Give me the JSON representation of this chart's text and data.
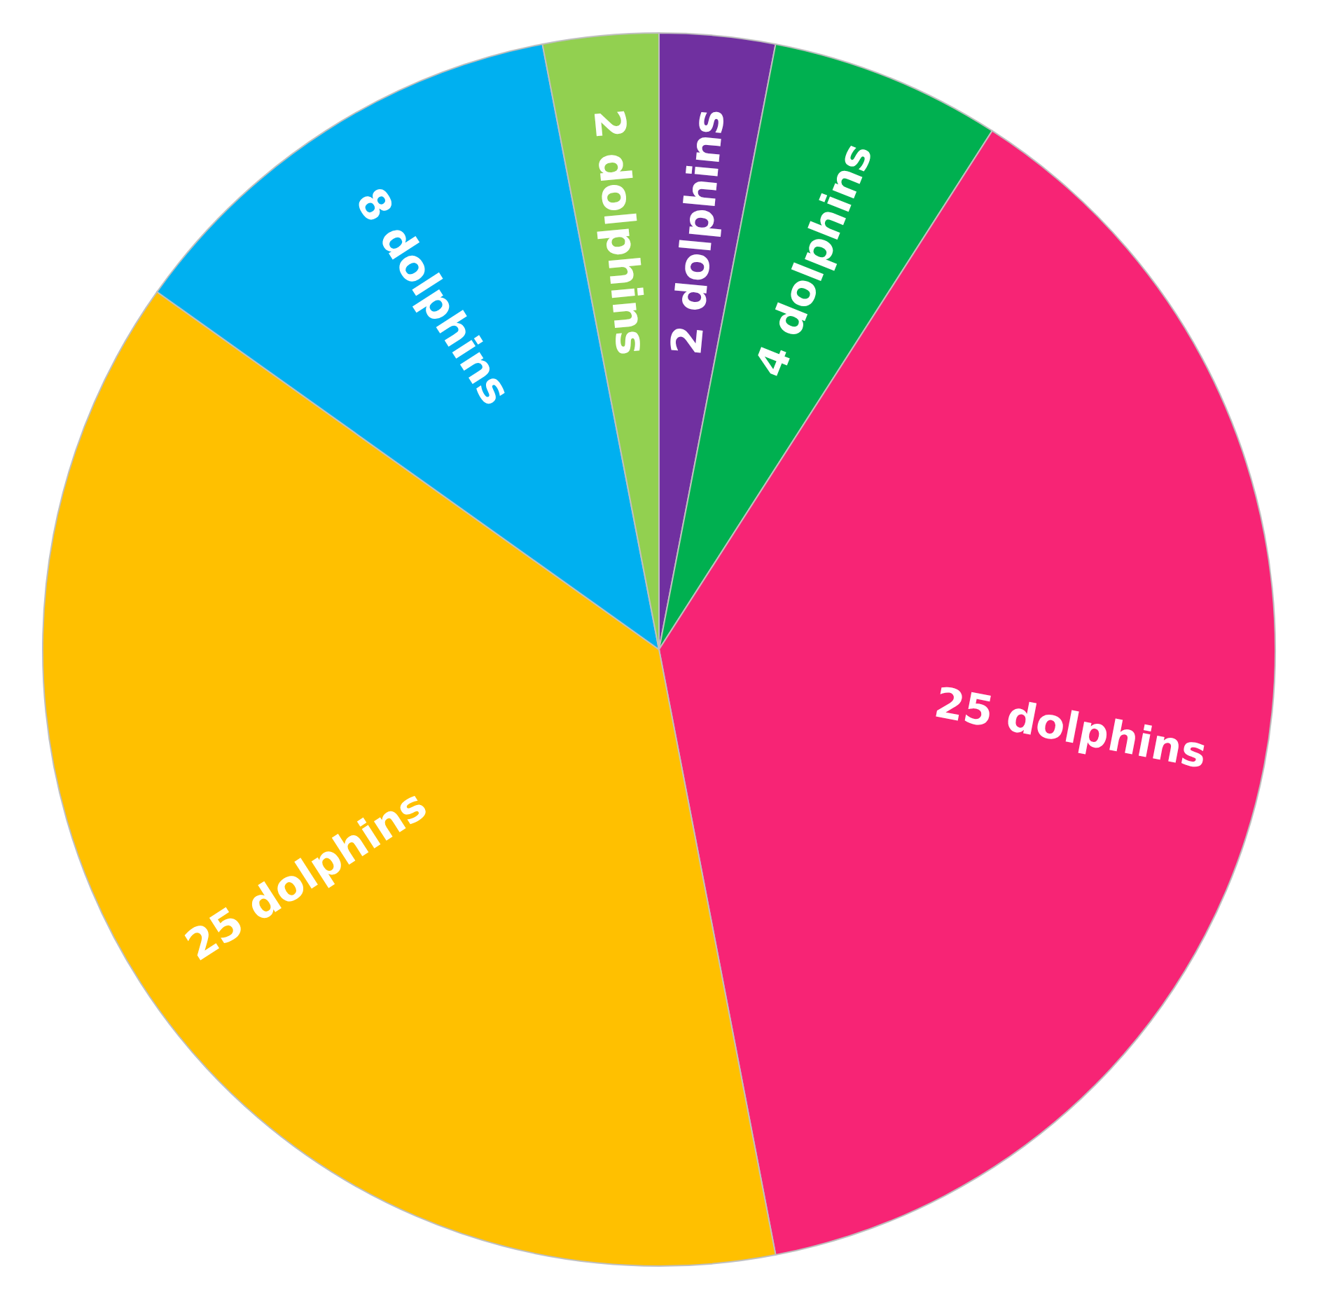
{
  "chart_data": {
    "type": "pie",
    "categories": [
      null,
      null,
      null,
      null,
      null,
      null
    ],
    "values": [
      2,
      4,
      25,
      25,
      8,
      2
    ],
    "colors": [
      "#7030a0",
      "#00b050",
      "#f72475",
      "#ffc000",
      "#00b0f0",
      "#92d050"
    ],
    "value_labels": [
      "2 dolphins",
      "4 dolphins",
      "25 dolphins",
      "25 dolphins",
      "8 dolphins",
      "2 dolphins"
    ]
  }
}
